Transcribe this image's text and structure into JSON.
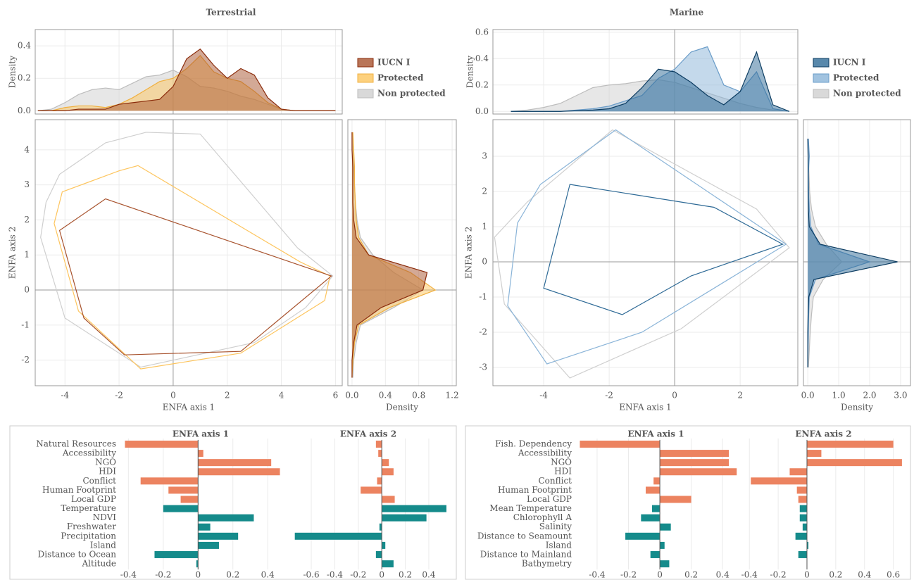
{
  "chart_data": [
    {
      "type": "area",
      "orientation": "vertical",
      "title": "Terrestrial",
      "ylabel": "Density",
      "legend": "right",
      "ylim": [
        -0.02,
        0.5
      ],
      "yticks": [
        {
          "value": 0,
          "label": "0.0"
        },
        0.2,
        0.4
      ],
      "x": [
        -5,
        -4.5,
        -4,
        -3.5,
        -3,
        -2.5,
        -2,
        -1.5,
        -1,
        -0.5,
        0,
        0.5,
        1,
        1.5,
        2,
        2.5,
        3,
        3.5,
        4,
        4.5,
        5,
        5.5,
        6
      ],
      "series": [
        {
          "name": "IUCN I",
          "color": "#a8532e",
          "edgecolor": "#8b2c0c",
          "values": [
            0,
            0,
            0,
            0.01,
            0.01,
            0.01,
            0.04,
            0.05,
            0.06,
            0.07,
            0.15,
            0.32,
            0.38,
            0.28,
            0.2,
            0.26,
            0.22,
            0.08,
            0.01,
            0,
            0,
            0,
            0
          ]
        },
        {
          "name": "Protected",
          "color": "#fdc55e",
          "edgecolor": "#f0b040",
          "values": [
            0,
            0,
            0.02,
            0.03,
            0.03,
            0.02,
            0.04,
            0.08,
            0.13,
            0.18,
            0.2,
            0.26,
            0.34,
            0.24,
            0.2,
            0.18,
            0.12,
            0.05,
            0.01,
            0,
            0,
            0,
            0
          ]
        },
        {
          "name": "Non protected",
          "color": "#d0d0d0",
          "edgecolor": "#bdbdbd",
          "values": [
            0,
            0.01,
            0.05,
            0.1,
            0.13,
            0.14,
            0.13,
            0.17,
            0.21,
            0.22,
            0.25,
            0.21,
            0.15,
            0.14,
            0.12,
            0.09,
            0.07,
            0.04,
            0.01,
            0,
            0,
            0,
            0
          ]
        }
      ]
    },
    {
      "type": "polygon",
      "xlabel": "ENFA axis 1",
      "ylabel": "ENFA axis 2",
      "xlim": [
        -5.1,
        6.25
      ],
      "ylim": [
        -2.73,
        4.86
      ],
      "xticks": [
        -4,
        -2,
        0,
        2,
        4,
        6
      ],
      "yticks": [
        -2,
        -1,
        0,
        1,
        2,
        3,
        4
      ],
      "series": [
        {
          "name": "IUCN I",
          "edgecolor": "#a8532e",
          "x": [
            -4.2,
            -2.5,
            5.85,
            2.5,
            -1.8,
            -3.3
          ],
          "y": [
            1.7,
            2.6,
            0.4,
            -1.75,
            -1.85,
            -0.8
          ]
        },
        {
          "name": "Protected",
          "edgecolor": "#fdc55e",
          "x": [
            -4.4,
            -4.1,
            -2,
            -1.3,
            4.7,
            5.8,
            5.6,
            2.5,
            -1.2,
            -3.5
          ],
          "y": [
            1.9,
            2.8,
            3.4,
            3.55,
            0.8,
            0.4,
            -0.3,
            -1.8,
            -2.25,
            -0.6
          ]
        },
        {
          "name": "Non protected",
          "edgecolor": "#cfcfcf",
          "x": [
            -4.7,
            -4.2,
            -2.5,
            -1,
            1,
            4.6,
            5.9,
            4.9,
            3,
            -1.2,
            -4,
            -4.9
          ],
          "y": [
            2.5,
            3.3,
            4.2,
            4.5,
            4.45,
            1.2,
            0.4,
            -0.5,
            -1.5,
            -2.2,
            -0.8,
            1.5
          ]
        }
      ]
    },
    {
      "type": "area",
      "orientation": "horizontal",
      "xlabel": "Density",
      "xlim": [
        -0.05,
        1.25
      ],
      "xticks": [
        {
          "value": 0,
          "label": "0.0"
        },
        0.4,
        0.8,
        1.2
      ],
      "y": [
        -2.5,
        -2,
        -1.5,
        -1,
        -0.5,
        0,
        0.5,
        1,
        1.5,
        2,
        2.5,
        3,
        3.5,
        4,
        4.5
      ],
      "series": [
        {
          "name": "IUCN I",
          "color": "#a8532e",
          "edgecolor": "#8b2c0c",
          "values": [
            0,
            0,
            0.02,
            0.06,
            0.35,
            0.85,
            0.9,
            0.2,
            0.05,
            0.02,
            0.01,
            0.01,
            0.01,
            0,
            0
          ]
        },
        {
          "name": "Protected",
          "color": "#fdc55e",
          "edgecolor": "#f0b040",
          "values": [
            0,
            0.01,
            0.03,
            0.08,
            0.45,
            1.0,
            0.7,
            0.2,
            0.08,
            0.05,
            0.04,
            0.03,
            0.03,
            0.02,
            0.01
          ]
        },
        {
          "name": "Non protected",
          "color": "#d0d0d0",
          "edgecolor": "#bdbdbd",
          "values": [
            0.01,
            0.02,
            0.05,
            0.1,
            0.5,
            0.85,
            0.5,
            0.25,
            0.1,
            0.06,
            0.04,
            0.03,
            0.02,
            0.01,
            0
          ]
        }
      ]
    },
    {
      "type": "bar",
      "orientation": "horizontal",
      "categories": [
        "Natural Resources",
        "Accessibility",
        "NGO",
        "HDI",
        "Conflict",
        "Human Footprint",
        "Local GDP",
        "Temperature",
        "NDVI",
        "Freshwater",
        "Precipitation",
        "Island",
        "Distance to Ocean",
        "Altitude"
      ],
      "colors": [
        "#ec8360",
        "#ec8360",
        "#ec8360",
        "#ec8360",
        "#ec8360",
        "#ec8360",
        "#ec8360",
        "#158b8b",
        "#158b8b",
        "#158b8b",
        "#158b8b",
        "#158b8b",
        "#158b8b",
        "#158b8b"
      ],
      "panels": [
        {
          "title": "ENFA axis 1",
          "xlim": [
            -0.45,
            0.48
          ],
          "xticks": [
            -0.4,
            -0.2,
            0,
            0.2,
            0.4
          ],
          "values": [
            -0.42,
            0.03,
            0.42,
            0.47,
            -0.33,
            -0.17,
            -0.1,
            -0.2,
            0.32,
            0.07,
            0.23,
            0.12,
            -0.25,
            -0.01
          ]
        },
        {
          "title": "ENFA axis 2",
          "xlim": [
            -0.78,
            0.55
          ],
          "xticks": [
            -0.6,
            -0.4,
            -0.2,
            0,
            0.2,
            0.4
          ],
          "values": [
            -0.05,
            -0.03,
            0.06,
            0.1,
            -0.04,
            -0.18,
            0.11,
            0.55,
            0.38,
            -0.02,
            -0.74,
            0.03,
            -0.05,
            0.1
          ]
        }
      ]
    },
    {
      "type": "area",
      "orientation": "vertical",
      "title": "Marine",
      "ylabel": "Density",
      "legend": "right",
      "ylim": [
        -0.02,
        0.62
      ],
      "yticks": [
        {
          "value": 0,
          "label": "0.0"
        },
        0.2,
        0.4,
        0.6
      ],
      "x": [
        -5,
        -4.5,
        -4,
        -3.5,
        -3,
        -2.5,
        -2,
        -1.5,
        -1,
        -0.5,
        0,
        0.5,
        1,
        1.5,
        2,
        2.5,
        3,
        3.5
      ],
      "series": [
        {
          "name": "IUCN I",
          "color": "#2e6a96",
          "edgecolor": "#0d3d62",
          "values": [
            0,
            0,
            0,
            0,
            0.005,
            0.01,
            0.02,
            0.06,
            0.18,
            0.32,
            0.3,
            0.22,
            0.12,
            0.05,
            0.15,
            0.45,
            0.05,
            0
          ]
        },
        {
          "name": "Protected",
          "color": "#8ab4d8",
          "edgecolor": "#6a9cc8",
          "values": [
            0,
            0,
            0,
            0,
            0.01,
            0.02,
            0.04,
            0.08,
            0.12,
            0.25,
            0.32,
            0.45,
            0.49,
            0.2,
            0.15,
            0.3,
            0.02,
            0
          ]
        },
        {
          "name": "Non protected",
          "color": "#d0d0d0",
          "edgecolor": "#bdbdbd",
          "values": [
            0,
            0.01,
            0.03,
            0.06,
            0.12,
            0.18,
            0.2,
            0.21,
            0.23,
            0.24,
            0.22,
            0.18,
            0.14,
            0.1,
            0.06,
            0.03,
            0.01,
            0
          ]
        }
      ]
    },
    {
      "type": "polygon",
      "xlabel": "ENFA axis 1",
      "ylabel": "ENFA axis 2",
      "xlim": [
        -5.55,
        3.76
      ],
      "ylim": [
        -3.52,
        4.04
      ],
      "xticks": [
        -4,
        -2,
        0,
        2
      ],
      "yticks": [
        -3,
        -2,
        -1,
        0,
        1,
        2,
        3
      ],
      "series": [
        {
          "name": "IUCN I",
          "edgecolor": "#2e6a96",
          "x": [
            -3.2,
            1.2,
            3.3,
            0.5,
            -1.6,
            -4
          ],
          "y": [
            2.2,
            1.55,
            0.5,
            -0.4,
            -1.5,
            -0.75
          ]
        },
        {
          "name": "Protected",
          "edgecolor": "#8ab4d8",
          "x": [
            -4.8,
            -5.1,
            -3.9,
            -1,
            3.4,
            -1.8,
            -4.1
          ],
          "y": [
            1.1,
            -1.25,
            -2.9,
            -2,
            0.5,
            3.75,
            2.2
          ]
        },
        {
          "name": "Non protected",
          "edgecolor": "#cfcfcf",
          "x": [
            -5.5,
            -5.2,
            -3.2,
            0.2,
            3.5,
            2.5,
            -1.9,
            -4.5
          ],
          "y": [
            0.7,
            -1.2,
            -3.3,
            -1.9,
            0.4,
            1.5,
            3.75,
            1.7
          ]
        }
      ]
    },
    {
      "type": "area",
      "orientation": "horizontal",
      "xlabel": "Density",
      "xlim": [
        -0.14,
        3.32
      ],
      "xticks": [
        {
          "value": 0,
          "label": "0.0"
        },
        {
          "value": 1,
          "label": "1.0"
        },
        {
          "value": 2,
          "label": "2.0"
        },
        {
          "value": 3,
          "label": "3.0"
        }
      ],
      "y": [
        -3,
        -2.5,
        -2,
        -1.5,
        -1,
        -0.5,
        0,
        0.5,
        1,
        1.5,
        2,
        2.5,
        3,
        3.5
      ],
      "series": [
        {
          "name": "IUCN I",
          "color": "#2e6a96",
          "edgecolor": "#0d3d62",
          "values": [
            0,
            0,
            0,
            0.01,
            0.03,
            0.2,
            2.9,
            0.4,
            0.05,
            0.02,
            0.01,
            0.01,
            0.01,
            0
          ]
        },
        {
          "name": "Protected",
          "color": "#8ab4d8",
          "edgecolor": "#6a9cc8",
          "values": [
            0,
            0.01,
            0.02,
            0.03,
            0.05,
            0.25,
            2.0,
            0.35,
            0.1,
            0.05,
            0.03,
            0.02,
            0.05,
            0.02
          ]
        },
        {
          "name": "Non protected",
          "color": "#d0d0d0",
          "edgecolor": "#bdbdbd",
          "values": [
            0.02,
            0.05,
            0.08,
            0.12,
            0.18,
            0.5,
            1.1,
            0.6,
            0.25,
            0.12,
            0.06,
            0.04,
            0.02,
            0.01
          ]
        }
      ]
    },
    {
      "type": "bar",
      "orientation": "horizontal",
      "categories": [
        "Fish. Dependency",
        "Accessibility",
        "NGO",
        "HDI",
        "Conflict",
        "Human Footprint",
        "Local GDP",
        "Mean Temperature",
        "Chlorophyll A",
        "Salinity",
        "Distance to Seamount",
        "Island",
        "Distance to Mainland",
        "Bathymetry"
      ],
      "colors": [
        "#ec8360",
        "#ec8360",
        "#ec8360",
        "#ec8360",
        "#ec8360",
        "#ec8360",
        "#ec8360",
        "#158b8b",
        "#158b8b",
        "#158b8b",
        "#158b8b",
        "#158b8b",
        "#158b8b",
        "#158b8b"
      ],
      "panels": [
        {
          "title": "ENFA axis 1",
          "xlim": [
            -0.53,
            0.48
          ],
          "xticks": [
            -0.4,
            -0.2,
            0,
            0.2,
            0.4
          ],
          "values": [
            -0.51,
            0.44,
            0.44,
            0.49,
            -0.04,
            -0.09,
            0.2,
            -0.05,
            -0.12,
            0.07,
            -0.22,
            0.03,
            -0.06,
            0.06
          ]
        },
        {
          "title": "ENFA axis 2",
          "xlim": [
            -0.45,
            0.68
          ],
          "xticks": [
            -0.4,
            -0.2,
            0,
            0.2,
            0.4,
            0.6
          ],
          "values": [
            0.6,
            0.1,
            0.66,
            -0.12,
            -0.39,
            -0.07,
            -0.06,
            -0.05,
            -0.05,
            -0.03,
            -0.08,
            0.01,
            -0.06,
            0
          ]
        }
      ]
    }
  ]
}
